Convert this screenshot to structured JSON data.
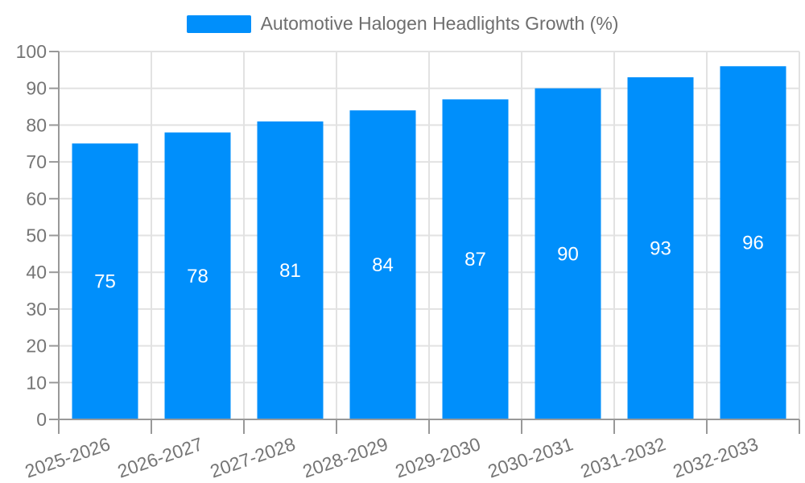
{
  "chart_data": {
    "type": "bar",
    "title": "Automotive Halogen Headlights Growth (%)",
    "categories": [
      "2025-2026",
      "2026-2027",
      "2027-2028",
      "2028-2029",
      "2029-2030",
      "2030-2031",
      "2031-2032",
      "2032-2033"
    ],
    "values": [
      75,
      78,
      81,
      84,
      87,
      90,
      93,
      96
    ],
    "xlabel": "",
    "ylabel": "",
    "ylim": [
      0,
      100
    ],
    "ytick_step": 10,
    "ytick_labels": [
      "0",
      "10",
      "20",
      "30",
      "40",
      "50",
      "60",
      "70",
      "80",
      "90",
      "100"
    ],
    "legend_position": "top",
    "grid": "on",
    "value_labels_shown": true,
    "bar_color": "#008FFB",
    "value_label_color": "#FFFFFF",
    "axis_label_color": "#757575",
    "axis_line_color": "#999999",
    "grid_color": "#E2E2E2",
    "legend_text_color": "#6E6E6E",
    "background_color": "#FFFFFF"
  }
}
